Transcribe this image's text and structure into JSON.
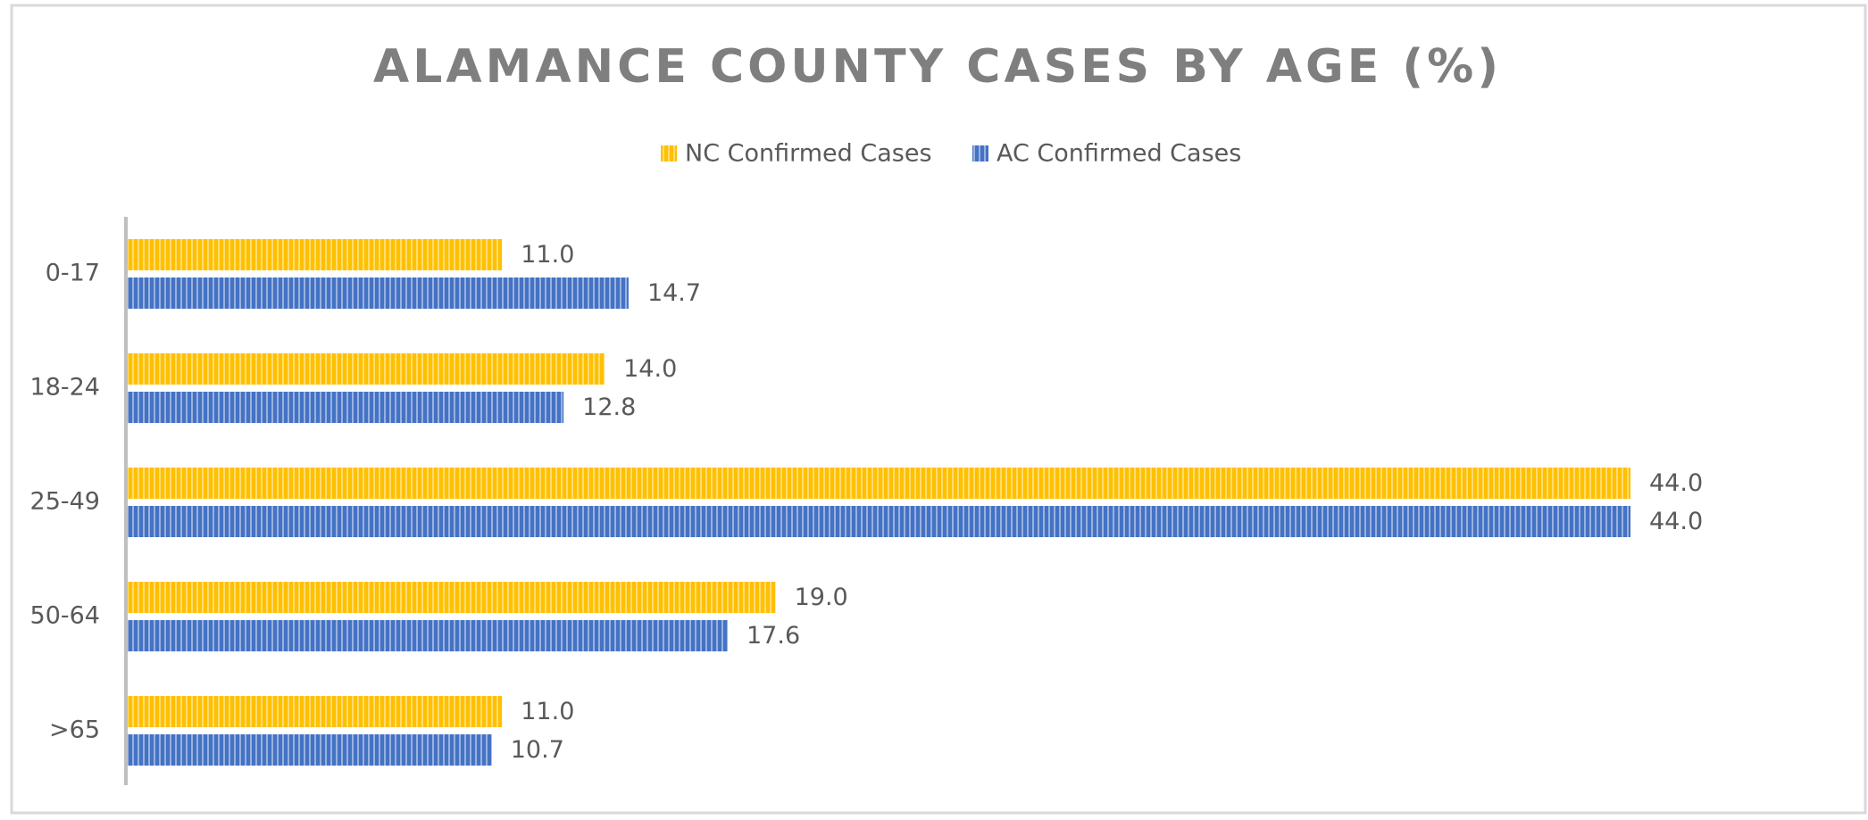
{
  "chart_data": {
    "type": "bar",
    "orientation": "horizontal",
    "title": "ALAMANCE COUNTY CASES BY AGE (%)",
    "categories": [
      "0-17",
      "18-24",
      "25-49",
      "50-64",
      ">65"
    ],
    "series": [
      {
        "name": "NC Confirmed Cases",
        "color": "#ffc000",
        "values": [
          11,
          14,
          44,
          19,
          11
        ],
        "value_labels": [
          "11.0",
          "14.0",
          "44.0",
          "19.0",
          "11.0"
        ]
      },
      {
        "name": "AC Confirmed Cases",
        "color": "#4472c4",
        "values": [
          14.7,
          12.8,
          44,
          17.6,
          10.7
        ],
        "value_labels": [
          "14.7",
          "12.8",
          "44.0",
          "17.6",
          "10.7"
        ]
      }
    ],
    "legend": "top",
    "pattern": "vertical-stripes"
  }
}
